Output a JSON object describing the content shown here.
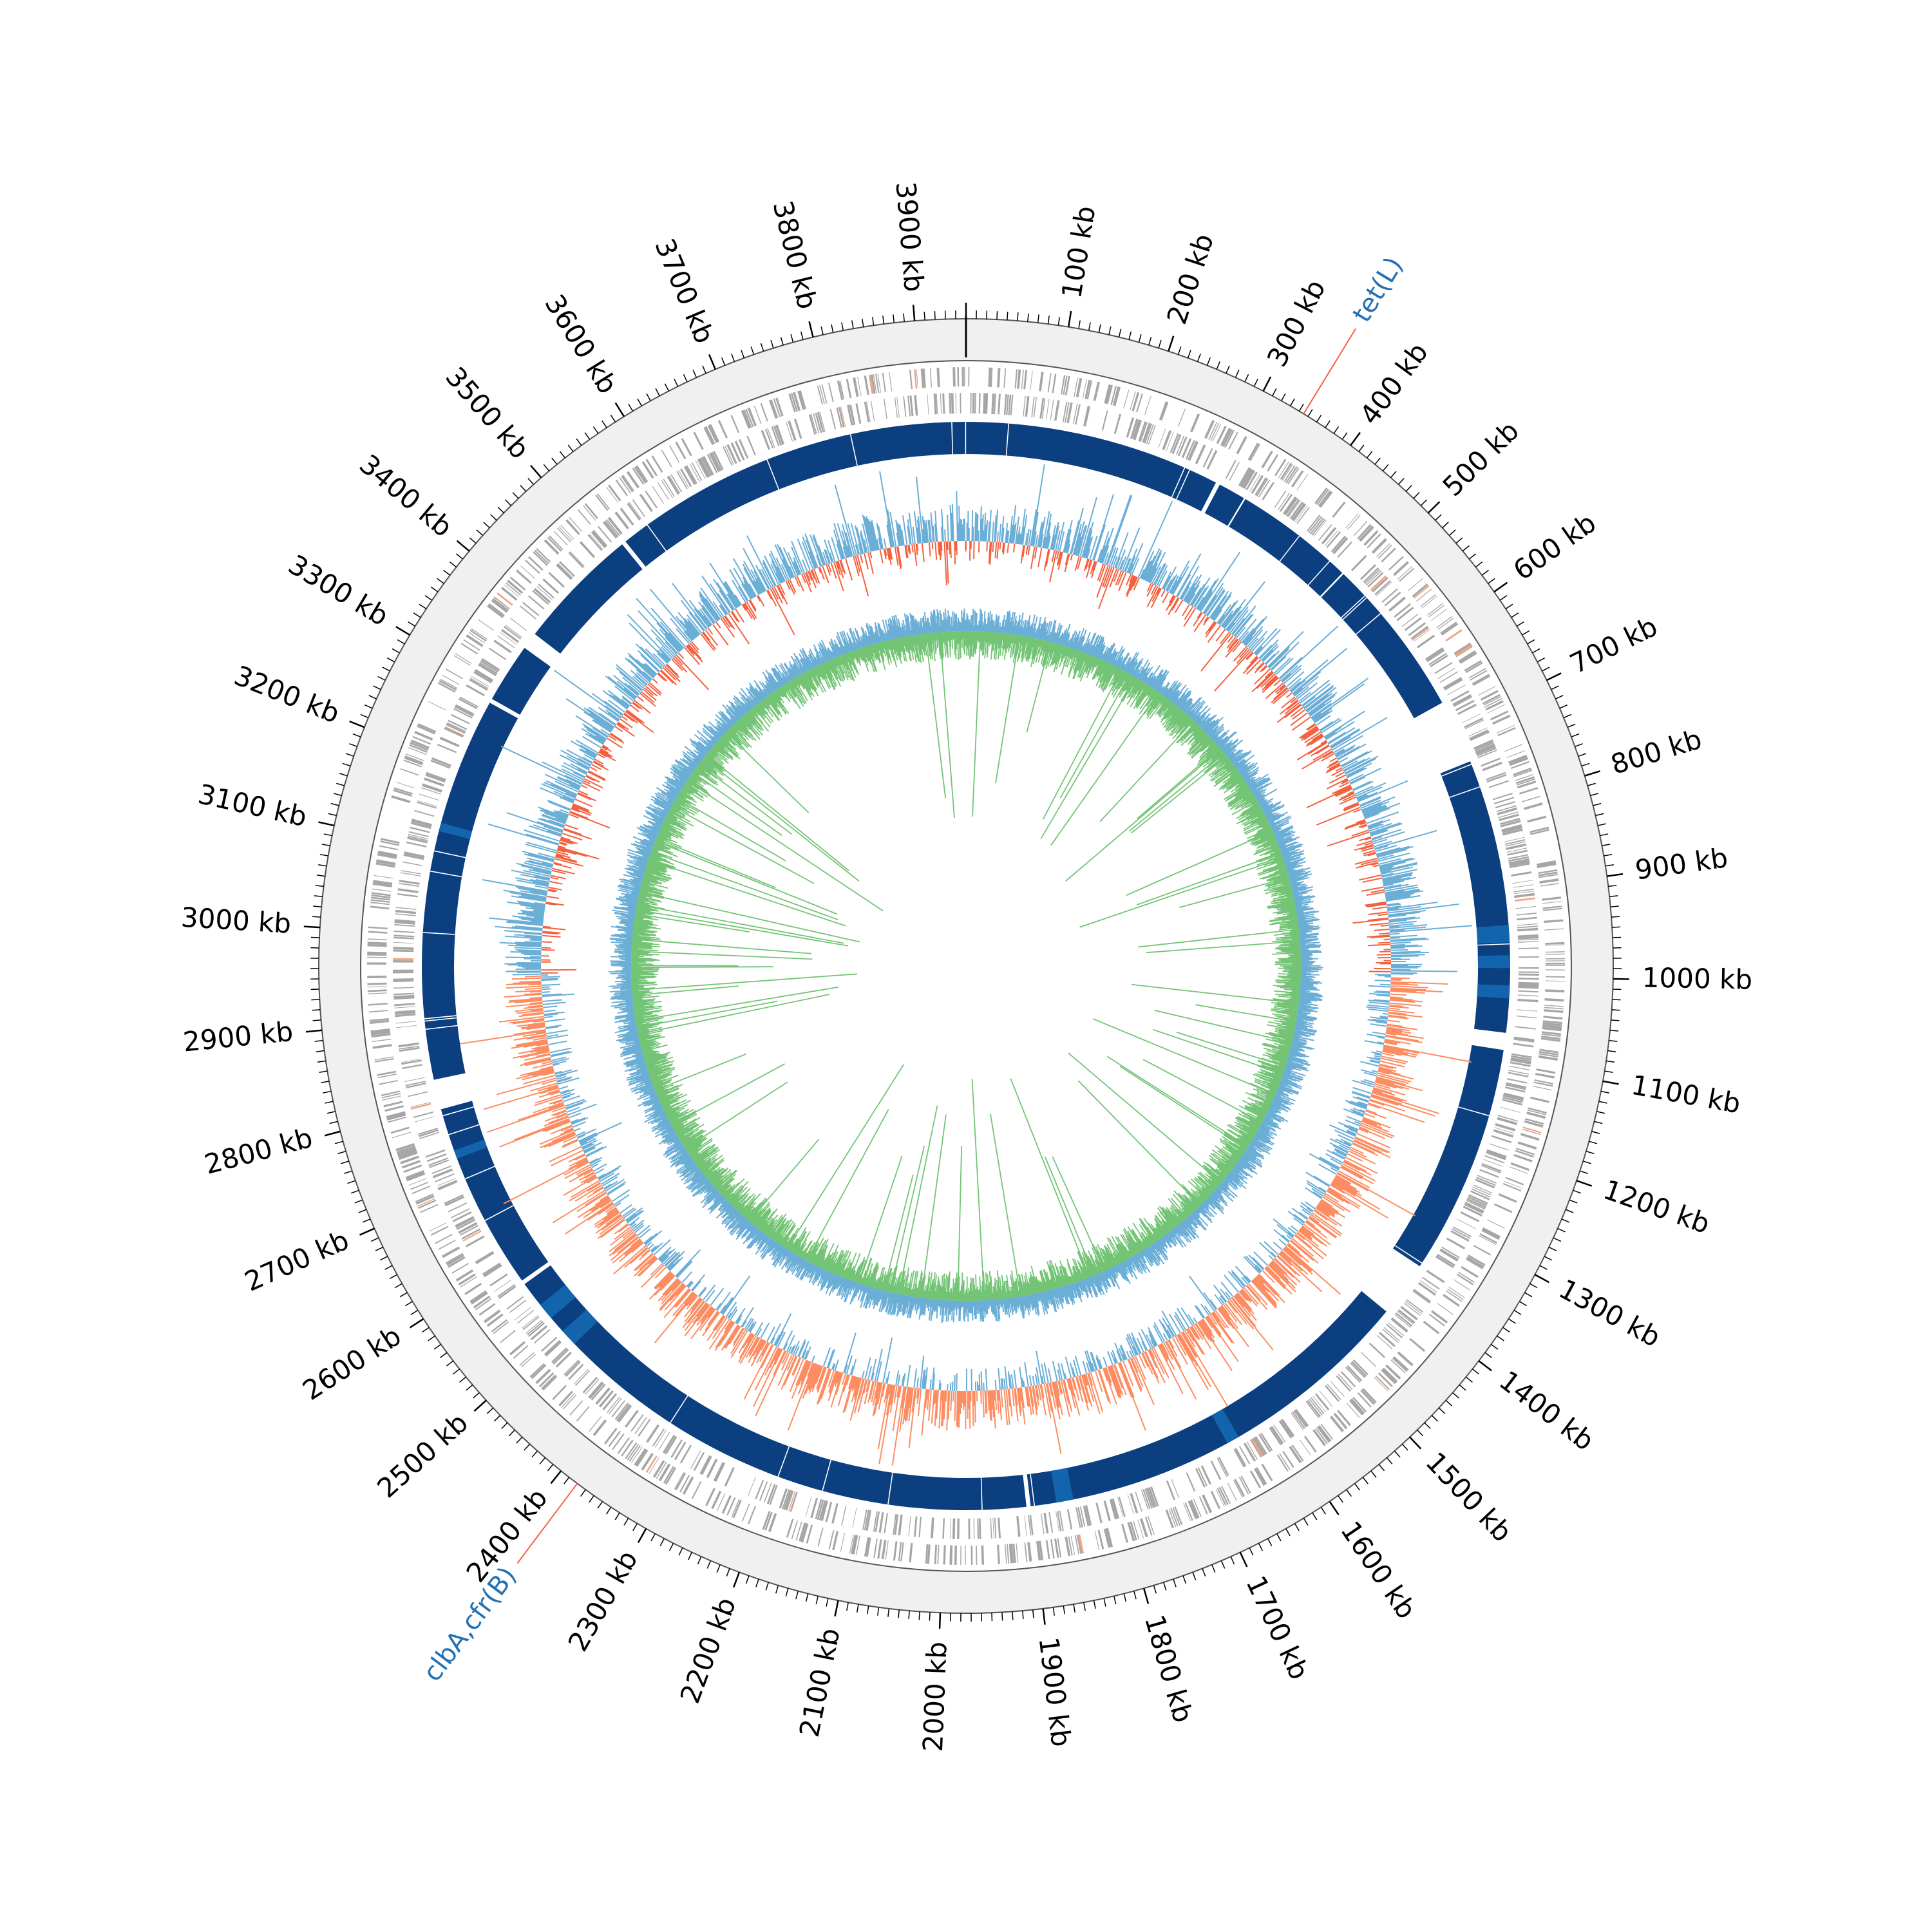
{
  "genome": {
    "length_kb": 3950,
    "tick_labels": [
      "100 kb",
      "200 kb",
      "300 kb",
      "400 kb",
      "500 kb",
      "600 kb",
      "700 kb",
      "800 kb",
      "900 kb",
      "1000 kb",
      "1100 kb",
      "1200 kb",
      "1300 kb",
      "1400 kb",
      "1500 kb",
      "1600 kb",
      "1700 kb",
      "1800 kb",
      "1900 kb",
      "2000 kb",
      "2100 kb",
      "2200 kb",
      "2300 kb",
      "2400 kb",
      "2500 kb",
      "2600 kb",
      "2700 kb",
      "2800 kb",
      "2900 kb",
      "3000 kb",
      "3100 kb",
      "3200 kb",
      "3300 kb",
      "3400 kb",
      "3500 kb",
      "3600 kb",
      "3700 kb",
      "3800 kb",
      "3900 kb"
    ]
  },
  "annotations": [
    {
      "label": "tet(L)",
      "position_kb": 345
    },
    {
      "label": "clbA,cfr(B)",
      "position_kb": 2380
    }
  ],
  "colors": {
    "backbone": "#f0f0f0",
    "cds": "#a6a6a6",
    "cds_highlight": "#f4a582",
    "blocks": "#0b3f7f",
    "blocks_alt": "#1265ad",
    "gc_positive": "#6baed6",
    "gc_negative": "#f4613f",
    "skew_positive": "#fc8d62",
    "content_line": "#6baed6",
    "content_alt": "#74c476",
    "annotation_label": "#2171b5",
    "annotation_line": "#f4613f"
  }
}
